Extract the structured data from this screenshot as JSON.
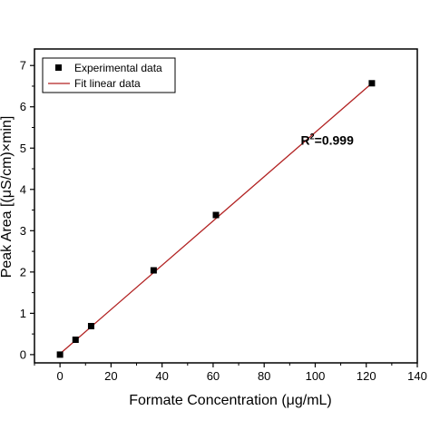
{
  "chart_data": {
    "type": "scatter",
    "xlabel": "Formate Concentration (μg/mL)",
    "ylabel": "Peak Area [(μS/cm)×min]",
    "xlim": [
      -10,
      140
    ],
    "ylim": [
      -0.2,
      7.4
    ],
    "xticks": [
      0,
      20,
      40,
      60,
      80,
      100,
      120,
      140
    ],
    "yticks": [
      0,
      1,
      2,
      3,
      4,
      5,
      6,
      7
    ],
    "grid": false,
    "legend_position": "top-left",
    "series": [
      {
        "name": "Experimental data",
        "kind": "scatter",
        "color": "#000000",
        "x": [
          0,
          6.1,
          12.2,
          36.7,
          61.1,
          122.2
        ],
        "y": [
          0.0,
          0.36,
          0.69,
          2.04,
          3.38,
          6.57
        ]
      },
      {
        "name": "Fit linear data",
        "kind": "line",
        "color": "#b22222",
        "x": [
          0,
          122.2
        ],
        "y": [
          0.02,
          6.57
        ]
      }
    ],
    "annotations": [
      {
        "text_main": "R",
        "text_sup": "2",
        "text_rest": "=0.999",
        "x": 105,
        "y": 5.3
      }
    ]
  }
}
